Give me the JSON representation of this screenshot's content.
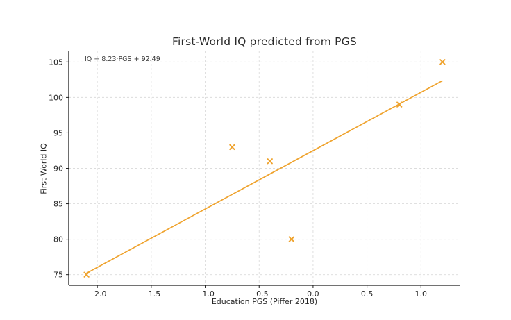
{
  "chart_data": {
    "type": "scatter",
    "title": "First-World IQ predicted from PGS",
    "xlabel": "Education PGS (Piffer 2018)",
    "ylabel": "First-World IQ",
    "annotation": "IQ = 8.23·PGS + 92.49",
    "points": [
      {
        "x": -2.1,
        "y": 75
      },
      {
        "x": -0.75,
        "y": 93
      },
      {
        "x": -0.4,
        "y": 91
      },
      {
        "x": -0.2,
        "y": 80
      },
      {
        "x": 0.8,
        "y": 99
      },
      {
        "x": 1.2,
        "y": 105
      }
    ],
    "fit_line": {
      "slope": 8.23,
      "intercept": 92.49,
      "x_start": -2.1,
      "x_end": 1.2
    },
    "xlim": [
      -2.265,
      1.365
    ],
    "ylim": [
      73.5,
      106.5
    ],
    "x_ticks": {
      "values": [
        -2.0,
        -1.5,
        -1.0,
        -0.5,
        0.0,
        0.5,
        1.0
      ],
      "labels": [
        "−2.0",
        "−1.5",
        "−1.0",
        "−0.5",
        "0.0",
        "0.5",
        "1.0"
      ]
    },
    "y_ticks": {
      "values": [
        75,
        80,
        85,
        90,
        95,
        100,
        105
      ],
      "labels": [
        "75",
        "80",
        "85",
        "90",
        "95",
        "100",
        "105"
      ]
    },
    "grid": true,
    "grid_style": "dashed",
    "legend": false,
    "marker": "x",
    "colors": {
      "series": "#efa32e",
      "grid": "#dcdcdc",
      "text": "#262626",
      "spine": "#1f1f1f"
    }
  }
}
